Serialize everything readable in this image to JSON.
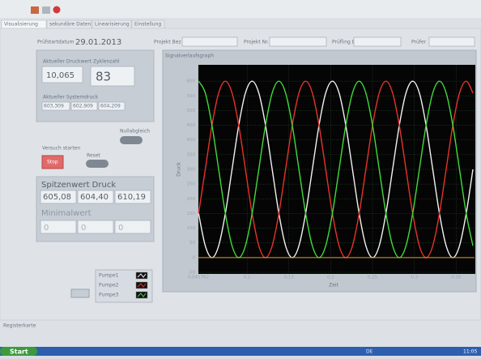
{
  "tabs": [
    "Visualisierung",
    "sekundäre Daten",
    "Linearisierung",
    "Einstellung"
  ],
  "header": {
    "date_label": "Prüfstartdatum",
    "date": "29.01.2013",
    "project_name": "Projekt Bez",
    "project_no": "Projekt Nr.",
    "specimen": "Prüfling Bez",
    "tester": "Prüfer"
  },
  "status_panel": {
    "pressure_label": "Aktueller Druckwert",
    "pressure": "10,065",
    "cycles_label": "Zyklenzahl",
    "cycles": "83",
    "system_label": "Aktueller Systemdruck",
    "system_values": [
      "603,309",
      "602,909",
      "604,209"
    ]
  },
  "controls": {
    "zero": "Nullabgleich",
    "start": "Versuch starten",
    "stop": "Stop",
    "reset": "Reset"
  },
  "peaks_panel": {
    "peak_label": "Spitzenwert Druck",
    "peaks": [
      "605,08",
      "604,40",
      "610,19"
    ],
    "min_label": "Minimalwert",
    "mins": [
      "0",
      "0",
      "0"
    ]
  },
  "status_bar": "Registerkarte",
  "taskbar": {
    "start": "Start",
    "lang": "DE",
    "clock": "11:05"
  },
  "chart_data": {
    "type": "line",
    "title": "Signalverlaufsgraph",
    "x_label": "Zeit",
    "y_label": "Druck",
    "xlim": [
      0.041762,
      0.37
    ],
    "ylim": [
      -50,
      650
    ],
    "xticks": [
      {
        "value": 0.041762,
        "label": "0,041762"
      },
      {
        "value": 0.1,
        "label": "0,1"
      },
      {
        "value": 0.15,
        "label": "0,15"
      },
      {
        "value": 0.2,
        "label": "0,2"
      },
      {
        "value": 0.25,
        "label": "0,25"
      },
      {
        "value": 0.3,
        "label": "0,3"
      },
      {
        "value": 0.35,
        "label": "0,35"
      }
    ],
    "yticks": [
      -50,
      0,
      50,
      100,
      150,
      200,
      250,
      300,
      350,
      400,
      450,
      500,
      550,
      600
    ],
    "grid": true,
    "x": [
      0.042,
      0.05,
      0.058,
      0.066,
      0.074,
      0.082,
      0.09,
      0.098,
      0.106,
      0.114,
      0.122,
      0.13,
      0.138,
      0.146,
      0.154,
      0.162,
      0.17,
      0.178,
      0.186,
      0.194,
      0.202,
      0.21,
      0.218,
      0.226,
      0.234,
      0.242,
      0.25,
      0.258,
      0.266,
      0.274,
      0.282,
      0.29,
      0.298,
      0.306,
      0.314,
      0.322,
      0.33,
      0.338,
      0.346,
      0.354,
      0.362,
      0.37
    ],
    "series": [
      {
        "name": "Pumpe1",
        "color": "#f2f2f2",
        "values": [
          150,
          40.2,
          0,
          40.2,
          150,
          300,
          450,
          559.8,
          600,
          559.8,
          450,
          300,
          150,
          40.2,
          0,
          40.2,
          150,
          300,
          450,
          559.8,
          600,
          559.8,
          450,
          300,
          150,
          40.2,
          0,
          40.2,
          150,
          300,
          450,
          559.8,
          600,
          559.8,
          450,
          300,
          150,
          40.2,
          0,
          40.2,
          150,
          300
        ]
      },
      {
        "name": "Pumpe2",
        "color": "#e8322a",
        "values": [
          150,
          300,
          450,
          559.8,
          600,
          559.8,
          450,
          300,
          150,
          40.2,
          0,
          40.2,
          150,
          300,
          450,
          559.8,
          600,
          559.8,
          450,
          300,
          150,
          40.2,
          0,
          40.2,
          150,
          300,
          450,
          559.8,
          600,
          559.8,
          450,
          300,
          150,
          40.2,
          0,
          40.2,
          150,
          300,
          450,
          559.8,
          600,
          559.8
        ]
      },
      {
        "name": "Pumpe3",
        "color": "#3fdc3a",
        "values": [
          600,
          559.8,
          450,
          300,
          150,
          40.2,
          0,
          40.2,
          150,
          300,
          450,
          559.8,
          600,
          559.8,
          450,
          300,
          150,
          40.2,
          0,
          40.2,
          150,
          300,
          450,
          559.8,
          600,
          559.8,
          450,
          300,
          150,
          40.2,
          0,
          40.2,
          150,
          300,
          450,
          559.8,
          600,
          559.8,
          450,
          300,
          150,
          40.2
        ]
      }
    ]
  }
}
